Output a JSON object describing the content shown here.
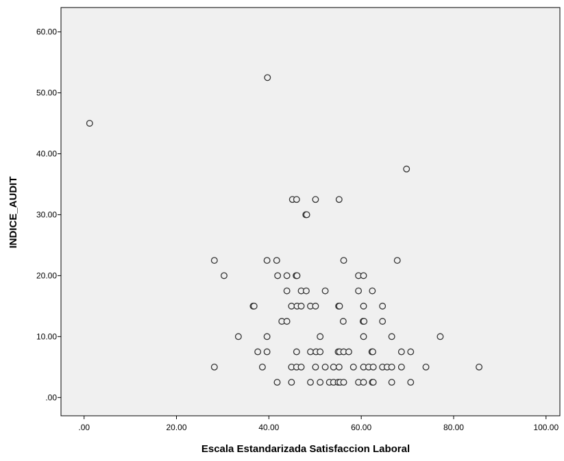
{
  "chart_data": {
    "type": "scatter",
    "title": "",
    "xlabel": "Escala Estandarizada Satisfaccion Laboral",
    "ylabel": "INDICE_AUDIT",
    "xlim": [
      -5,
      103
    ],
    "ylim": [
      -3,
      64
    ],
    "x_ticks": [
      0,
      20,
      40,
      60,
      80,
      100
    ],
    "x_tick_labels": [
      ".00",
      "20.00",
      "40.00",
      "60.00",
      "80.00",
      "100.00"
    ],
    "y_ticks": [
      0,
      10,
      20,
      30,
      40,
      50,
      60
    ],
    "y_tick_labels": [
      ".00",
      "10.00",
      "20.00",
      "30.00",
      "40.00",
      "50.00",
      "60.00"
    ],
    "grid": false,
    "legend": "none",
    "colors": {
      "plot_background": "#f0f0f0",
      "marker_stroke": "#333333",
      "marker_fill": "#f0f0f0"
    },
    "points": [
      {
        "x": 1.2,
        "y": 45
      },
      {
        "x": 39.7,
        "y": 52.5
      },
      {
        "x": 69.8,
        "y": 37.5
      },
      {
        "x": 45.1,
        "y": 32.5
      },
      {
        "x": 46.0,
        "y": 32.5
      },
      {
        "x": 50.1,
        "y": 32.5
      },
      {
        "x": 55.2,
        "y": 32.5
      },
      {
        "x": 48.0,
        "y": 30
      },
      {
        "x": 48.2,
        "y": 30
      },
      {
        "x": 28.2,
        "y": 22.5
      },
      {
        "x": 39.6,
        "y": 22.5
      },
      {
        "x": 41.7,
        "y": 22.5
      },
      {
        "x": 56.2,
        "y": 22.5
      },
      {
        "x": 67.8,
        "y": 22.5
      },
      {
        "x": 30.3,
        "y": 20
      },
      {
        "x": 41.9,
        "y": 20
      },
      {
        "x": 43.9,
        "y": 20
      },
      {
        "x": 45.9,
        "y": 20
      },
      {
        "x": 46.1,
        "y": 20
      },
      {
        "x": 59.4,
        "y": 20
      },
      {
        "x": 60.5,
        "y": 20
      },
      {
        "x": 43.9,
        "y": 17.5
      },
      {
        "x": 47.0,
        "y": 17.5
      },
      {
        "x": 48.1,
        "y": 17.5
      },
      {
        "x": 52.2,
        "y": 17.5
      },
      {
        "x": 59.4,
        "y": 17.5
      },
      {
        "x": 62.4,
        "y": 17.5
      },
      {
        "x": 36.6,
        "y": 15
      },
      {
        "x": 36.8,
        "y": 15
      },
      {
        "x": 44.9,
        "y": 15
      },
      {
        "x": 46.1,
        "y": 15
      },
      {
        "x": 47.0,
        "y": 15
      },
      {
        "x": 49.0,
        "y": 15
      },
      {
        "x": 50.1,
        "y": 15
      },
      {
        "x": 55.1,
        "y": 15
      },
      {
        "x": 55.3,
        "y": 15
      },
      {
        "x": 60.5,
        "y": 15
      },
      {
        "x": 64.6,
        "y": 15
      },
      {
        "x": 42.8,
        "y": 12.5
      },
      {
        "x": 43.9,
        "y": 12.5
      },
      {
        "x": 56.1,
        "y": 12.5
      },
      {
        "x": 60.4,
        "y": 12.5
      },
      {
        "x": 60.6,
        "y": 12.5
      },
      {
        "x": 64.6,
        "y": 12.5
      },
      {
        "x": 33.4,
        "y": 10
      },
      {
        "x": 39.6,
        "y": 10
      },
      {
        "x": 51.1,
        "y": 10
      },
      {
        "x": 60.5,
        "y": 10
      },
      {
        "x": 66.6,
        "y": 10
      },
      {
        "x": 77.1,
        "y": 10
      },
      {
        "x": 37.6,
        "y": 7.5
      },
      {
        "x": 39.6,
        "y": 7.5
      },
      {
        "x": 46.0,
        "y": 7.5
      },
      {
        "x": 49.0,
        "y": 7.5
      },
      {
        "x": 50.2,
        "y": 7.5
      },
      {
        "x": 51.1,
        "y": 7.5
      },
      {
        "x": 55.0,
        "y": 7.5
      },
      {
        "x": 55.3,
        "y": 7.5
      },
      {
        "x": 56.2,
        "y": 7.5
      },
      {
        "x": 57.3,
        "y": 7.5
      },
      {
        "x": 62.3,
        "y": 7.5
      },
      {
        "x": 62.5,
        "y": 7.5
      },
      {
        "x": 68.7,
        "y": 7.5
      },
      {
        "x": 70.7,
        "y": 7.5
      },
      {
        "x": 28.2,
        "y": 5
      },
      {
        "x": 38.6,
        "y": 5
      },
      {
        "x": 44.9,
        "y": 5
      },
      {
        "x": 46.0,
        "y": 5
      },
      {
        "x": 47.0,
        "y": 5
      },
      {
        "x": 50.1,
        "y": 5
      },
      {
        "x": 52.2,
        "y": 5
      },
      {
        "x": 54.0,
        "y": 5
      },
      {
        "x": 55.2,
        "y": 5
      },
      {
        "x": 58.3,
        "y": 5
      },
      {
        "x": 60.5,
        "y": 5
      },
      {
        "x": 61.6,
        "y": 5
      },
      {
        "x": 62.6,
        "y": 5
      },
      {
        "x": 64.6,
        "y": 5
      },
      {
        "x": 65.6,
        "y": 5
      },
      {
        "x": 66.6,
        "y": 5
      },
      {
        "x": 68.7,
        "y": 5
      },
      {
        "x": 74.0,
        "y": 5
      },
      {
        "x": 85.5,
        "y": 5
      },
      {
        "x": 41.8,
        "y": 2.5
      },
      {
        "x": 44.9,
        "y": 2.5
      },
      {
        "x": 49.0,
        "y": 2.5
      },
      {
        "x": 51.1,
        "y": 2.5
      },
      {
        "x": 53.1,
        "y": 2.5
      },
      {
        "x": 54.0,
        "y": 2.5
      },
      {
        "x": 55.0,
        "y": 2.5
      },
      {
        "x": 55.4,
        "y": 2.5
      },
      {
        "x": 56.2,
        "y": 2.5
      },
      {
        "x": 59.4,
        "y": 2.5
      },
      {
        "x": 60.5,
        "y": 2.5
      },
      {
        "x": 62.4,
        "y": 2.5
      },
      {
        "x": 62.6,
        "y": 2.5
      },
      {
        "x": 66.6,
        "y": 2.5
      },
      {
        "x": 70.7,
        "y": 2.5
      }
    ]
  }
}
